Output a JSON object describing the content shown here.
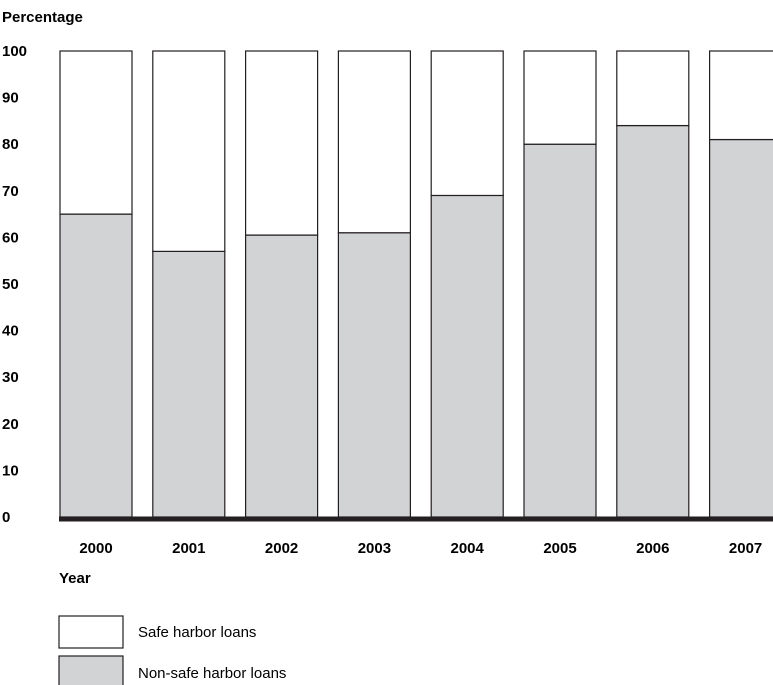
{
  "chart_data": {
    "type": "bar",
    "stacked": true,
    "percent": true,
    "title": "",
    "ylabel": "Percentage",
    "xlabel": "Year",
    "ylim": [
      0,
      100
    ],
    "yticks": [
      0,
      10,
      20,
      30,
      40,
      50,
      60,
      70,
      80,
      90,
      100
    ],
    "categories": [
      "2000",
      "2001",
      "2002",
      "2003",
      "2004",
      "2005",
      "2006",
      "2007"
    ],
    "series": [
      {
        "name": "Non-safe harbor loans",
        "color": "#d1d3d4",
        "values": [
          65,
          57,
          60.5,
          61,
          69,
          80,
          84,
          81
        ]
      },
      {
        "name": "Safe harbor loans",
        "color": "#ffffff",
        "values": [
          35,
          43,
          39.5,
          39,
          31,
          20,
          16,
          19
        ]
      }
    ],
    "legend": {
      "position": "bottom-left",
      "entries": [
        "Safe harbor loans",
        "Non-safe harbor loans"
      ]
    },
    "grid": false
  }
}
